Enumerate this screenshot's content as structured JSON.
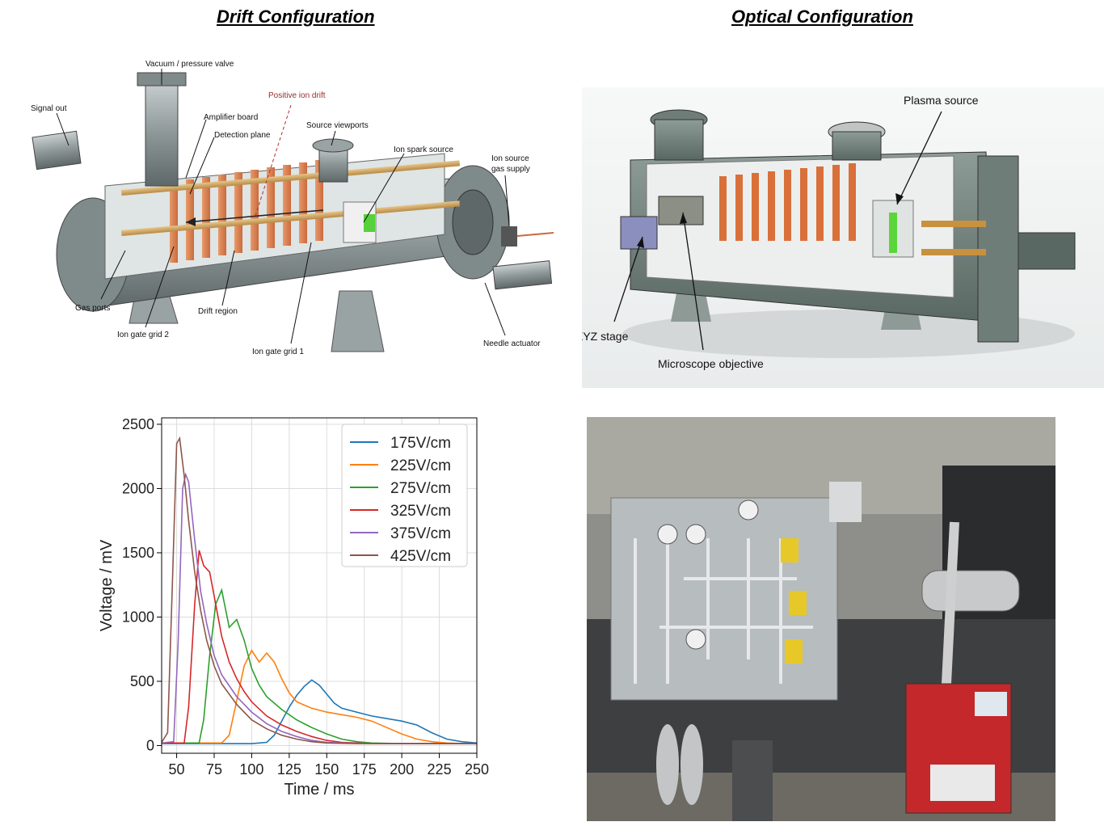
{
  "headings": {
    "drift": "Drift Configuration",
    "optical": "Optical Configuration"
  },
  "drift_labels": {
    "vacuum_valve": "Vacuum / pressure valve",
    "positive_ion_drift": "Positive ion drift",
    "signal_out": "Signal out",
    "amplifier_board": "Amplifier board",
    "detection_plane": "Detection plane",
    "source_viewports": "Source viewports",
    "ion_spark_source": "Ion spark source",
    "ion_source_gas_supply_1": "Ion source",
    "ion_source_gas_supply_2": "gas supply",
    "gas_ports": "Gas ports",
    "drift_region": "Drift region",
    "ion_gate_grid_2": "Ion gate grid 2",
    "ion_gate_grid_1": "Ion gate grid 1",
    "needle_actuator": "Needle actuator"
  },
  "optical_labels": {
    "plasma_source": "Plasma source",
    "xyz_stage": "XYZ stage",
    "microscope_objective": "Microscope objective"
  },
  "chart_data": {
    "type": "line",
    "title": "",
    "xlabel": "Time / ms",
    "ylabel": "Voltage / mV",
    "xlim": [
      40,
      250
    ],
    "ylim": [
      -60,
      2550
    ],
    "xticks": [
      50,
      75,
      100,
      125,
      150,
      175,
      200,
      225,
      250
    ],
    "yticks": [
      0,
      500,
      1000,
      1500,
      2000,
      2500
    ],
    "grid": true,
    "legend_position": "top-right",
    "series": [
      {
        "name": "175V/cm",
        "color": "#1f77b4",
        "x": [
          40,
          100,
          110,
          115,
          120,
          125,
          130,
          135,
          140,
          145,
          150,
          155,
          160,
          170,
          180,
          190,
          200,
          210,
          220,
          230,
          240,
          250
        ],
        "y": [
          15,
          15,
          25,
          80,
          190,
          300,
          390,
          460,
          510,
          470,
          400,
          330,
          290,
          260,
          230,
          210,
          190,
          160,
          100,
          50,
          30,
          20
        ]
      },
      {
        "name": "225V/cm",
        "color": "#ff7f0e",
        "x": [
          40,
          80,
          85,
          90,
          95,
          100,
          105,
          110,
          115,
          120,
          125,
          130,
          140,
          150,
          160,
          170,
          180,
          190,
          200,
          210,
          220,
          230,
          240,
          250
        ],
        "y": [
          20,
          20,
          80,
          350,
          620,
          740,
          650,
          720,
          650,
          520,
          410,
          340,
          290,
          260,
          240,
          220,
          190,
          140,
          90,
          50,
          30,
          20,
          15,
          15
        ]
      },
      {
        "name": "275V/cm",
        "color": "#2ca02c",
        "x": [
          40,
          65,
          68,
          72,
          76,
          80,
          85,
          90,
          95,
          100,
          105,
          110,
          120,
          130,
          140,
          150,
          160,
          170,
          180,
          200,
          220,
          250
        ],
        "y": [
          20,
          20,
          200,
          700,
          1100,
          1210,
          920,
          980,
          820,
          600,
          470,
          380,
          280,
          200,
          140,
          90,
          50,
          30,
          20,
          15,
          15,
          15
        ]
      },
      {
        "name": "325V/cm",
        "color": "#d62728",
        "x": [
          40,
          55,
          58,
          62,
          65,
          68,
          72,
          76,
          80,
          85,
          90,
          95,
          100,
          110,
          120,
          130,
          140,
          150,
          160,
          180,
          200,
          250
        ],
        "y": [
          20,
          20,
          300,
          1100,
          1520,
          1400,
          1350,
          1100,
          850,
          650,
          520,
          420,
          340,
          230,
          160,
          110,
          70,
          40,
          25,
          15,
          15,
          15
        ]
      },
      {
        "name": "375V/cm",
        "color": "#9467bd",
        "x": [
          40,
          48,
          51,
          54,
          56,
          58,
          62,
          66,
          70,
          75,
          80,
          90,
          100,
          110,
          120,
          130,
          140,
          150,
          160,
          180,
          250
        ],
        "y": [
          20,
          30,
          800,
          2000,
          2110,
          2050,
          1600,
          1200,
          950,
          700,
          550,
          380,
          260,
          170,
          110,
          70,
          40,
          25,
          20,
          15,
          15
        ]
      },
      {
        "name": "425V/cm",
        "color": "#8c564b",
        "x": [
          40,
          44,
          47,
          50,
          52,
          55,
          58,
          62,
          66,
          70,
          75,
          80,
          90,
          100,
          110,
          120,
          130,
          140,
          150,
          170,
          250
        ],
        "y": [
          25,
          100,
          1200,
          2350,
          2390,
          2100,
          1750,
          1350,
          1050,
          820,
          620,
          480,
          320,
          200,
          130,
          80,
          50,
          30,
          20,
          15,
          15
        ]
      }
    ]
  }
}
